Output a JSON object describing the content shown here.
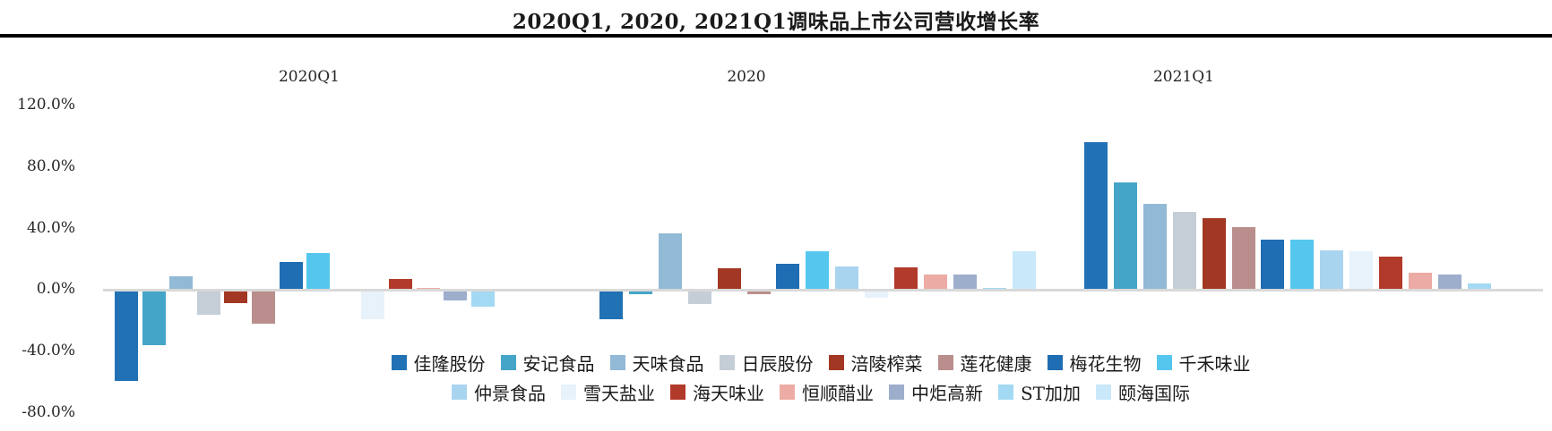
{
  "title": "2020Q1, 2020, 2021Q1调味品上市公司营收增长率",
  "chart_data": {
    "type": "bar",
    "title": "2020Q1, 2020, 2021Q1调味品上市公司营收增长率",
    "groups": [
      "2020Q1",
      "2020",
      "2021Q1"
    ],
    "y_axis": {
      "tick_labels": [
        "120.0%",
        "80.0%",
        "40.0%",
        "0.0%",
        "-40.0%",
        "-80.0%"
      ],
      "tick_values": [
        120,
        80,
        40,
        0,
        -40,
        -80
      ],
      "ylim": [
        -80,
        120
      ],
      "unit": "percent"
    },
    "grid": false,
    "legend_position": "bottom",
    "series": [
      {
        "name": "佳隆股份",
        "color": "#2171B5",
        "values": [
          -59.5,
          -19,
          96
        ]
      },
      {
        "name": "安记食品",
        "color": "#45A5C8",
        "values": [
          -36,
          -2.5,
          70
        ]
      },
      {
        "name": "天味食品",
        "color": "#92B9D5",
        "values": [
          9,
          37,
          56
        ]
      },
      {
        "name": "日辰股份",
        "color": "#C5CED7",
        "values": [
          -16,
          -9,
          51
        ]
      },
      {
        "name": "涪陵榨菜",
        "color": "#A23823",
        "values": [
          -8.5,
          14,
          47
        ]
      },
      {
        "name": "莲花健康",
        "color": "#B98E8C",
        "values": [
          -22,
          -2.5,
          41
        ]
      },
      {
        "name": "梅花生物",
        "color": "#1F6DB2",
        "values": [
          18.5,
          17,
          33
        ]
      },
      {
        "name": "千禾味业",
        "color": "#55C7EE",
        "values": [
          24,
          25,
          33
        ]
      },
      {
        "name": "仲景食品",
        "color": "#A9D4EF",
        "values": [
          null,
          15.5,
          26
        ]
      },
      {
        "name": "雪天盐业",
        "color": "#E7F2FB",
        "values": [
          -19,
          -5,
          25
        ]
      },
      {
        "name": "海天味业",
        "color": "#B23A2A",
        "values": [
          7,
          15,
          22
        ]
      },
      {
        "name": "恒顺醋业",
        "color": "#ECABA4",
        "values": [
          1.5,
          10,
          11
        ]
      },
      {
        "name": "中炬高新",
        "color": "#9DAECC",
        "values": [
          -7,
          10,
          10
        ]
      },
      {
        "name": "ST加加",
        "color": "#A3D9F2",
        "values": [
          -11,
          1.5,
          4
        ]
      },
      {
        "name": "颐海国际",
        "color": "#C9E8F9",
        "values": [
          null,
          25.5,
          null
        ]
      }
    ]
  }
}
